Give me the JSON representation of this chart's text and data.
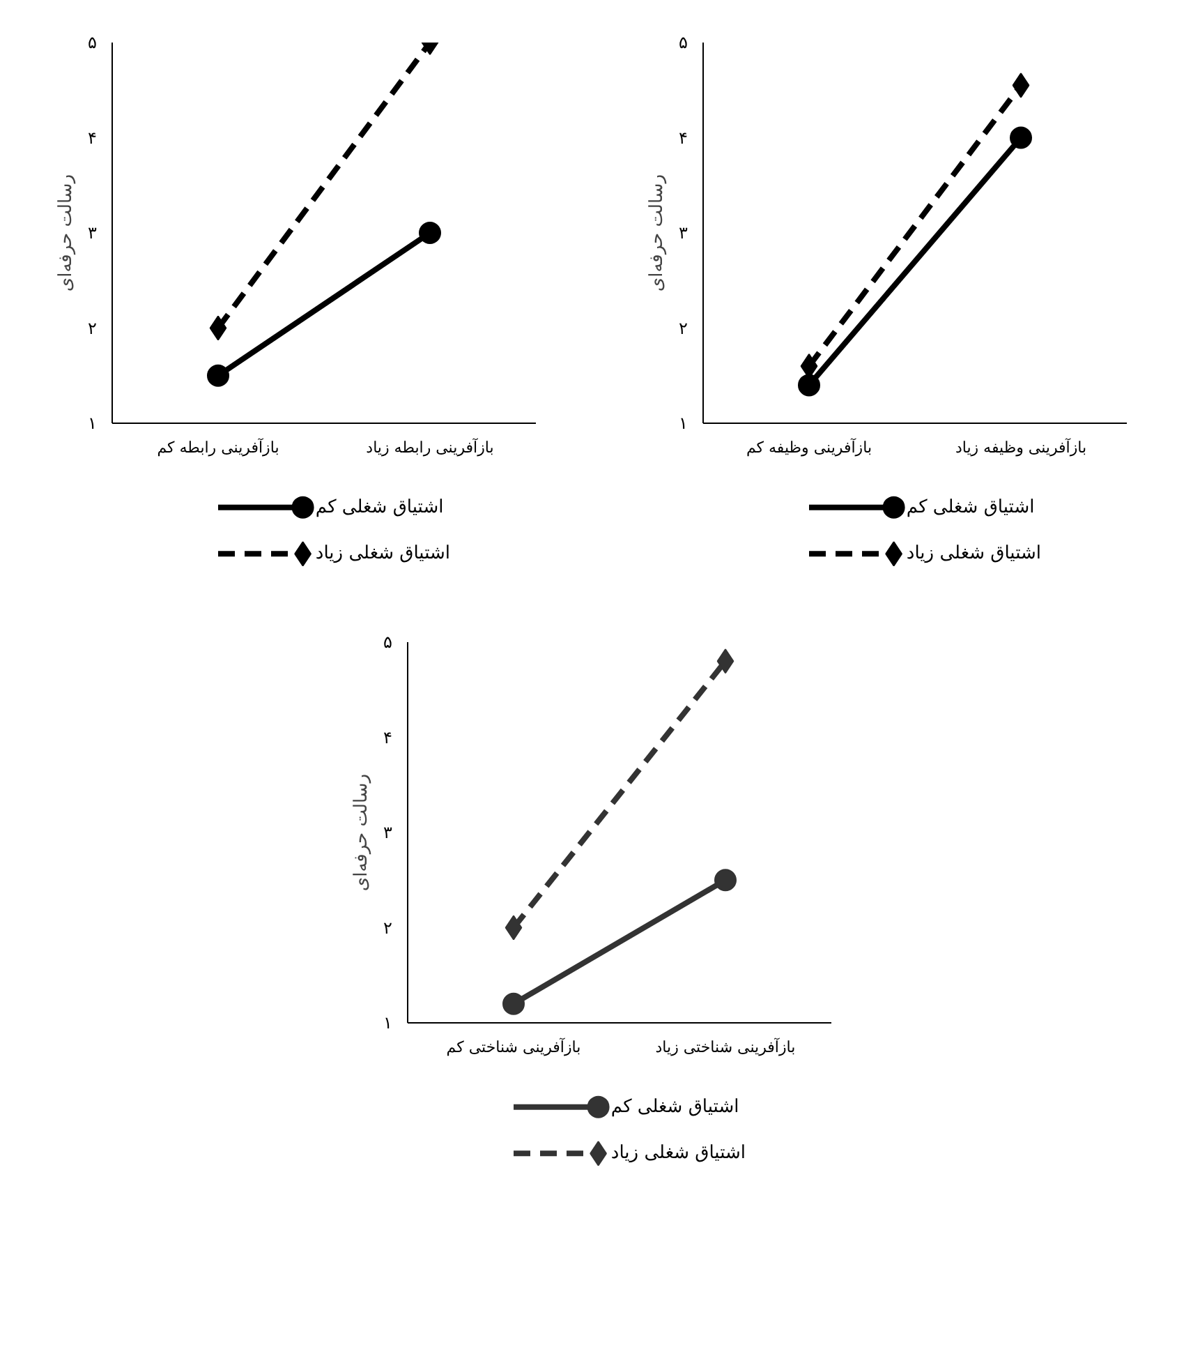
{
  "chart_data": [
    {
      "type": "line",
      "ylabel": "رسالت حرفه‌ای",
      "categories": [
        "بازآفرینی رابطه کم",
        "بازآفرینی رابطه زیاد"
      ],
      "ylim": [
        1,
        5
      ],
      "yticks": [
        {
          "value": 1,
          "label": "۱"
        },
        {
          "value": 2,
          "label": "۲"
        },
        {
          "value": 3,
          "label": "۳"
        },
        {
          "value": 4,
          "label": "۴"
        },
        {
          "value": 5,
          "label": "۵"
        }
      ],
      "legend": "bottom",
      "series": [
        {
          "name": "اشتیاق شغلی کم",
          "color": "#000000",
          "marker": "circle",
          "line_style": "solid",
          "values": [
            1.5,
            3.0
          ]
        },
        {
          "name": "اشتیاق شغلی زیاد",
          "color": "#000000",
          "marker": "diamond",
          "line_style": "dashed",
          "values": [
            2.0,
            5.0
          ]
        }
      ]
    },
    {
      "type": "line",
      "ylabel": "رسالت حرفه‌ای",
      "categories": [
        "بازآفرینی وظیفه کم",
        "بازآفرینی وظیفه زیاد"
      ],
      "ylim": [
        1,
        5
      ],
      "yticks": [
        {
          "value": 1,
          "label": "۱"
        },
        {
          "value": 2,
          "label": "۲"
        },
        {
          "value": 3,
          "label": "۳"
        },
        {
          "value": 4,
          "label": "۴"
        },
        {
          "value": 5,
          "label": "۵"
        }
      ],
      "legend": "bottom",
      "series": [
        {
          "name": "اشتیاق شغلی کم",
          "color": "#000000",
          "marker": "circle",
          "line_style": "solid",
          "values": [
            1.4,
            4.0
          ]
        },
        {
          "name": "اشتیاق شغلی زیاد",
          "color": "#000000",
          "marker": "diamond",
          "line_style": "dashed",
          "values": [
            1.6,
            4.55
          ]
        }
      ]
    },
    {
      "type": "line",
      "ylabel": "رسالت حرفه‌ای",
      "categories": [
        "بازآفرینی شناختی کم",
        "بازآفرینی شناختی زیاد"
      ],
      "ylim": [
        1,
        5
      ],
      "yticks": [
        {
          "value": 1,
          "label": "۱"
        },
        {
          "value": 2,
          "label": "۲"
        },
        {
          "value": 3,
          "label": "۳"
        },
        {
          "value": 4,
          "label": "۴"
        },
        {
          "value": 5,
          "label": "۵"
        }
      ],
      "legend": "bottom",
      "series": [
        {
          "name": "اشتیاق شغلی کم",
          "color": "#333333",
          "marker": "circle",
          "line_style": "solid",
          "values": [
            1.2,
            2.5
          ]
        },
        {
          "name": "اشتیاق شغلی زیاد",
          "color": "#333333",
          "marker": "diamond",
          "line_style": "dashed",
          "values": [
            2.0,
            4.8
          ]
        }
      ]
    }
  ]
}
